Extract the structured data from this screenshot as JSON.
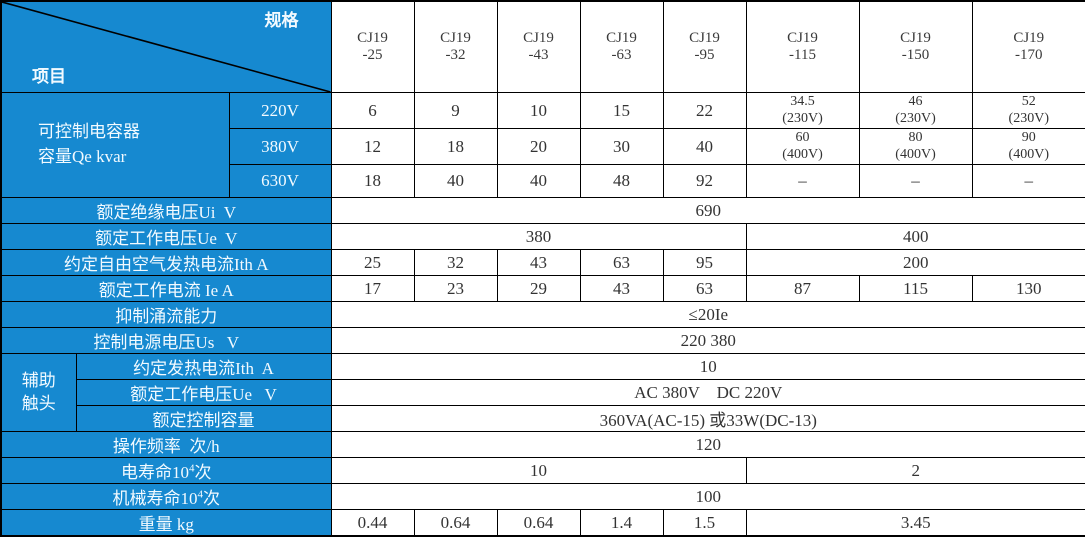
{
  "colors": {
    "header_blue": "#1689d0",
    "border": "#000000",
    "cell_bg": "#ffffff",
    "label_text": "#f2faff",
    "value_text": "#333333"
  },
  "corner": {
    "item_label": "项目",
    "spec_label": "规格"
  },
  "models": [
    [
      "CJ19",
      "-25"
    ],
    [
      "CJ19",
      "-32"
    ],
    [
      "CJ19",
      "-43"
    ],
    [
      "CJ19",
      "-63"
    ],
    [
      "CJ19",
      "-95"
    ],
    [
      "CJ19",
      "-115"
    ],
    [
      "CJ19",
      "-150"
    ],
    [
      "CJ19",
      "-170"
    ]
  ],
  "capacity": {
    "label_lines": [
      "可控制电容器",
      "容量Qe kvar"
    ],
    "rows": [
      {
        "voltage": "220V",
        "cells": [
          "6",
          "9",
          "10",
          "15",
          "22",
          [
            "34.5",
            "(230V)"
          ],
          [
            "46",
            "(230V)"
          ],
          [
            "52",
            "(230V)"
          ]
        ]
      },
      {
        "voltage": "380V",
        "cells": [
          "12",
          "18",
          "20",
          "30",
          "40",
          [
            "60",
            "(400V)"
          ],
          [
            "80",
            "(400V)"
          ],
          [
            "90",
            "(400V)"
          ]
        ]
      },
      {
        "voltage": "630V",
        "cells": [
          "18",
          "40",
          "40",
          "48",
          "92",
          "–",
          "–",
          "–"
        ]
      }
    ]
  },
  "middle_rows": [
    {
      "label": "额定绝缘电压Ui  V",
      "cells": [
        {
          "text": "690",
          "span": 8
        }
      ]
    },
    {
      "label": "额定工作电压Ue  V",
      "cells": [
        {
          "text": "380",
          "span": 5
        },
        {
          "text": "400",
          "span": 3
        }
      ]
    },
    {
      "label": "约定自由空气发热电流Ith A",
      "cells": [
        "25",
        "32",
        "43",
        "63",
        "95",
        {
          "text": "200",
          "span": 3
        }
      ]
    },
    {
      "label": "额定工作电流 Ie A",
      "cells": [
        "17",
        "23",
        "29",
        "43",
        "63",
        "87",
        "115",
        "130"
      ]
    },
    {
      "label": "抑制涌流能力",
      "cells": [
        {
          "text": "≤20Ie",
          "span": 8
        }
      ]
    },
    {
      "label": "控制电源电压Us   V",
      "cells": [
        {
          "text": "220 380",
          "span": 8
        }
      ]
    }
  ],
  "aux": {
    "label_lines": [
      "辅助",
      "触头"
    ],
    "rows": [
      {
        "label": "约定发热电流Ith  A",
        "cells": [
          {
            "text": "10",
            "span": 8
          }
        ]
      },
      {
        "label": "额定工作电压Ue   V",
        "cells": [
          {
            "text": "AC 380V    DC 220V",
            "span": 8
          }
        ]
      },
      {
        "label": "额定控制容量",
        "cells": [
          {
            "text": "360VA(AC-15) 或33W(DC-13)",
            "span": 8
          }
        ]
      }
    ]
  },
  "bottom_rows": [
    {
      "label": "操作频率  次/h",
      "cells": [
        {
          "text": "120",
          "span": 8
        }
      ]
    },
    {
      "segments": [
        {
          "t": "电寿命10"
        },
        {
          "t": "4",
          "sup": true
        },
        {
          "t": "次"
        }
      ],
      "cells": [
        {
          "text": "10",
          "span": 5
        },
        {
          "text": "2",
          "span": 3
        }
      ]
    },
    {
      "segments": [
        {
          "t": "机械寿命10"
        },
        {
          "t": "4",
          "sup": true
        },
        {
          "t": "次"
        }
      ],
      "cells": [
        {
          "text": "100",
          "span": 8
        }
      ]
    },
    {
      "label": "重量 kg",
      "cells": [
        "0.44",
        "0.64",
        "0.64",
        "1.4",
        "1.5",
        {
          "text": "3.45",
          "span": 3
        }
      ]
    }
  ]
}
